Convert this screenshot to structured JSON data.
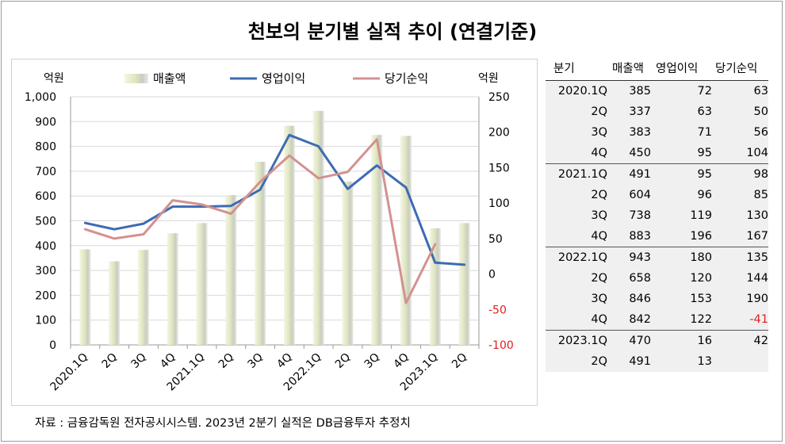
{
  "title": "천보의 분기별 실적 추이 (연결기준)",
  "source": "자료 : 금융감독원 전자공시시스템. 2023년 2분기 실적은 DB금융투자 추정치",
  "chart_data": {
    "type": "bar+line",
    "categories": [
      "2020.1Q",
      "2Q",
      "3Q",
      "4Q",
      "2021.1Q",
      "2Q",
      "3Q",
      "4Q",
      "2022.1Q",
      "2Q",
      "3Q",
      "4Q",
      "2023.1Q",
      "2Q"
    ],
    "left_axis_label": "억원",
    "right_axis_label": "억원",
    "ylim_left": [
      0,
      1000
    ],
    "ylim_right": [
      -100,
      250
    ],
    "left_ticks": [
      "0",
      "100",
      "200",
      "300",
      "400",
      "500",
      "600",
      "700",
      "800",
      "900",
      "1,000"
    ],
    "right_ticks": [
      "-100",
      "-50",
      "0",
      "50",
      "100",
      "150",
      "200",
      "250"
    ],
    "grid": true,
    "legend_position": "top",
    "series": [
      {
        "name": "매출액",
        "kind": "bar",
        "axis": "left",
        "color": "#e6ecc8",
        "values": [
          385,
          337,
          383,
          450,
          491,
          604,
          738,
          883,
          943,
          658,
          846,
          842,
          470,
          491
        ]
      },
      {
        "name": "영업이익",
        "kind": "line",
        "axis": "right",
        "color": "#3d6bb3",
        "values": [
          72,
          63,
          71,
          95,
          95,
          96,
          119,
          196,
          180,
          120,
          153,
          122,
          16,
          13
        ]
      },
      {
        "name": "당기순익",
        "kind": "line",
        "axis": "right",
        "color": "#d39190",
        "values": [
          63,
          50,
          56,
          104,
          98,
          85,
          130,
          167,
          135,
          144,
          190,
          -41,
          42,
          null
        ]
      }
    ]
  },
  "table": {
    "headers": [
      "분기",
      "매출액",
      "영업이익",
      "당기순익"
    ],
    "groups": [
      [
        [
          "2020.1Q",
          "385",
          "72",
          "63"
        ],
        [
          "2Q",
          "337",
          "63",
          "50"
        ],
        [
          "3Q",
          "383",
          "71",
          "56"
        ],
        [
          "4Q",
          "450",
          "95",
          "104"
        ]
      ],
      [
        [
          "2021.1Q",
          "491",
          "95",
          "98"
        ],
        [
          "2Q",
          "604",
          "96",
          "85"
        ],
        [
          "3Q",
          "738",
          "119",
          "130"
        ],
        [
          "4Q",
          "883",
          "196",
          "167"
        ]
      ],
      [
        [
          "2022.1Q",
          "943",
          "180",
          "135"
        ],
        [
          "2Q",
          "658",
          "120",
          "144"
        ],
        [
          "3Q",
          "846",
          "153",
          "190"
        ],
        [
          "4Q",
          "842",
          "122",
          "-41"
        ]
      ],
      [
        [
          "2023.1Q",
          "470",
          "16",
          "42"
        ],
        [
          "2Q",
          "491",
          "13",
          ""
        ]
      ]
    ]
  }
}
